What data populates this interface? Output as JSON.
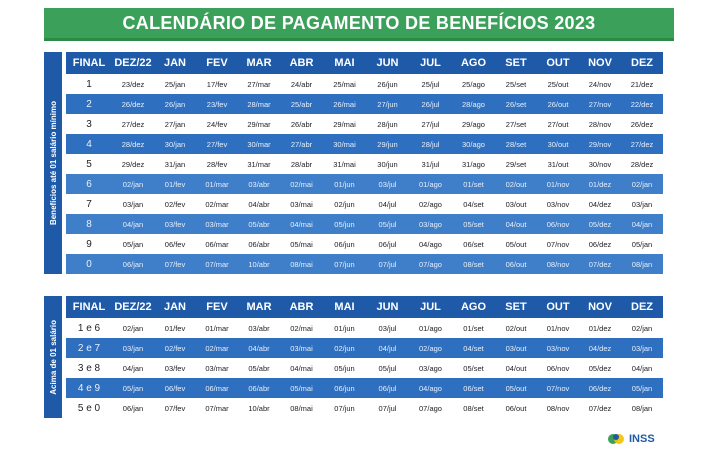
{
  "title": "CALENDÁRIO DE PAGAMENTO DE BENEFÍCIOS 2023",
  "headers": [
    "FINAL",
    "DEZ/22",
    "JAN",
    "FEV",
    "MAR",
    "ABR",
    "MAI",
    "JUN",
    "JUL",
    "AGO",
    "SET",
    "OUT",
    "NOV",
    "DEZ"
  ],
  "section1": {
    "side_label": "Benefícios até 01 salário mínimo",
    "rows": [
      [
        "1",
        "23/dez",
        "25/jan",
        "17/fev",
        "27/mar",
        "24/abr",
        "25/mai",
        "26/jun",
        "25/jul",
        "25/ago",
        "25/set",
        "25/out",
        "24/nov",
        "21/dez"
      ],
      [
        "2",
        "26/dez",
        "26/jan",
        "23/fev",
        "28/mar",
        "25/abr",
        "26/mai",
        "27/jun",
        "26/jul",
        "28/ago",
        "26/set",
        "26/out",
        "27/nov",
        "22/dez"
      ],
      [
        "3",
        "27/dez",
        "27/jan",
        "24/fev",
        "29/mar",
        "26/abr",
        "29/mai",
        "28/jun",
        "27/jul",
        "29/ago",
        "27/set",
        "27/out",
        "28/nov",
        "26/dez"
      ],
      [
        "4",
        "28/dez",
        "30/jan",
        "27/fev",
        "30/mar",
        "27/abr",
        "30/mai",
        "29/jun",
        "28/jul",
        "30/ago",
        "28/set",
        "30/out",
        "29/nov",
        "27/dez"
      ],
      [
        "5",
        "29/dez",
        "31/jan",
        "28/fev",
        "31/mar",
        "28/abr",
        "31/mai",
        "30/jun",
        "31/jul",
        "31/ago",
        "29/set",
        "31/out",
        "30/nov",
        "28/dez"
      ],
      [
        "6",
        "02/jan",
        "01/fev",
        "01/mar",
        "03/abr",
        "02/mai",
        "01/jun",
        "03/jul",
        "01/ago",
        "01/set",
        "02/out",
        "01/nov",
        "01/dez",
        "02/jan"
      ],
      [
        "7",
        "03/jan",
        "02/fev",
        "02/mar",
        "04/abr",
        "03/mai",
        "02/jun",
        "04/jul",
        "02/ago",
        "04/set",
        "03/out",
        "03/nov",
        "04/dez",
        "03/jan"
      ],
      [
        "8",
        "04/jan",
        "03/fev",
        "03/mar",
        "05/abr",
        "04/mai",
        "05/jun",
        "05/jul",
        "03/ago",
        "05/set",
        "04/out",
        "06/nov",
        "05/dez",
        "04/jan"
      ],
      [
        "9",
        "05/jan",
        "06/fev",
        "06/mar",
        "06/abr",
        "05/mai",
        "06/jun",
        "06/jul",
        "04/ago",
        "06/set",
        "05/out",
        "07/nov",
        "06/dez",
        "05/jan"
      ],
      [
        "0",
        "06/jan",
        "07/fev",
        "07/mar",
        "10/abr",
        "08/mai",
        "07/jun",
        "07/jul",
        "07/ago",
        "08/set",
        "06/out",
        "08/nov",
        "07/dez",
        "08/jan"
      ]
    ]
  },
  "section2": {
    "side_label": "Acima de 01 salário",
    "rows": [
      [
        "1 e 6",
        "02/jan",
        "01/fev",
        "01/mar",
        "03/abr",
        "02/mai",
        "01/jun",
        "03/jul",
        "01/ago",
        "01/set",
        "02/out",
        "01/nov",
        "01/dez",
        "02/jan"
      ],
      [
        "2 e 7",
        "03/jan",
        "02/fev",
        "02/mar",
        "04/abr",
        "03/mai",
        "02/jun",
        "04/jul",
        "02/ago",
        "04/set",
        "03/out",
        "03/nov",
        "04/dez",
        "03/jan"
      ],
      [
        "3 e 8",
        "04/jan",
        "03/fev",
        "03/mar",
        "05/abr",
        "04/mai",
        "05/jun",
        "05/jul",
        "03/ago",
        "05/set",
        "04/out",
        "06/nov",
        "05/dez",
        "04/jan"
      ],
      [
        "4 e 9",
        "05/jan",
        "06/fev",
        "06/mar",
        "06/abr",
        "05/mai",
        "06/jun",
        "06/jul",
        "04/ago",
        "06/set",
        "05/out",
        "07/nov",
        "06/dez",
        "05/jan"
      ],
      [
        "5 e 0",
        "06/jan",
        "07/fev",
        "07/mar",
        "10/abr",
        "08/mai",
        "07/jun",
        "07/jul",
        "07/ago",
        "08/set",
        "06/out",
        "08/nov",
        "07/dez",
        "08/jan"
      ]
    ]
  },
  "logo_text": "INSS",
  "colors": {
    "title_green": "#3aa05a",
    "header_blue": "#1f5aa8",
    "row_blue": "#2f6fc0",
    "row_white": "#ffffff"
  }
}
